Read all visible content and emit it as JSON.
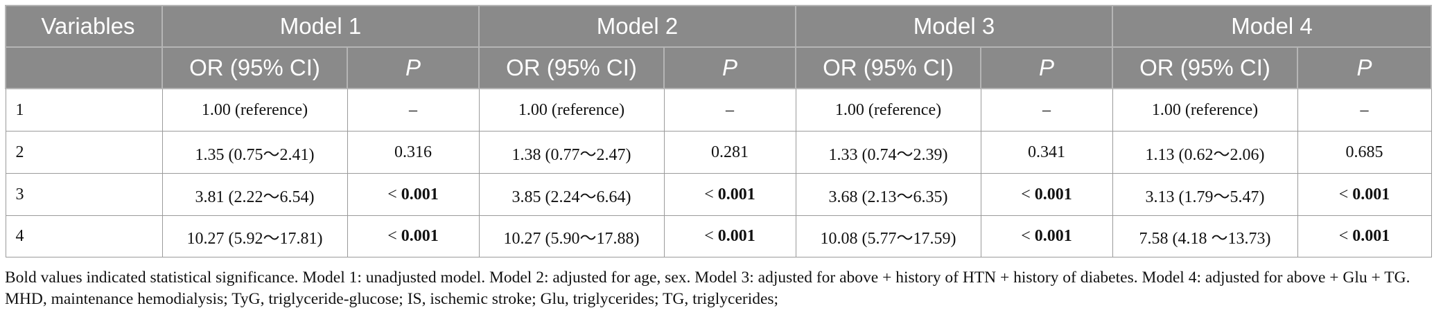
{
  "table": {
    "header_variables": "Variables",
    "models": [
      "Model 1",
      "Model 2",
      "Model 3",
      "Model 4"
    ],
    "sub_or": "OR (95% CI)",
    "sub_p": "P",
    "rows": [
      {
        "label": "1",
        "cells": [
          {
            "or": "1.00 (reference)",
            "p_prefix": "",
            "p": "–",
            "p_bold": false
          },
          {
            "or": "1.00 (reference)",
            "p_prefix": "",
            "p": "–",
            "p_bold": false
          },
          {
            "or": "1.00 (reference)",
            "p_prefix": "",
            "p": "–",
            "p_bold": false
          },
          {
            "or": "1.00 (reference)",
            "p_prefix": "",
            "p": "–",
            "p_bold": false
          }
        ]
      },
      {
        "label": "2",
        "cells": [
          {
            "or": "1.35 (0.75～2.41)",
            "p_prefix": "",
            "p": "0.316",
            "p_bold": false
          },
          {
            "or": "1.38 (0.77～2.47)",
            "p_prefix": "",
            "p": "0.281",
            "p_bold": false
          },
          {
            "or": "1.33 (0.74～2.39)",
            "p_prefix": "",
            "p": "0.341",
            "p_bold": false
          },
          {
            "or": "1.13 (0.62～2.06)",
            "p_prefix": "",
            "p": "0.685",
            "p_bold": false
          }
        ]
      },
      {
        "label": "3",
        "cells": [
          {
            "or": "3.81 (2.22～6.54)",
            "p_prefix": "< ",
            "p": "0.001",
            "p_bold": true
          },
          {
            "or": "3.85 (2.24～6.64)",
            "p_prefix": "< ",
            "p": "0.001",
            "p_bold": true
          },
          {
            "or": "3.68 (2.13～6.35)",
            "p_prefix": "< ",
            "p": "0.001",
            "p_bold": true
          },
          {
            "or": "3.13 (1.79～5.47)",
            "p_prefix": "< ",
            "p": "0.001",
            "p_bold": true
          }
        ]
      },
      {
        "label": "4",
        "cells": [
          {
            "or": "10.27 (5.92～17.81)",
            "p_prefix": "< ",
            "p": "0.001",
            "p_bold": true
          },
          {
            "or": "10.27 (5.90～17.88)",
            "p_prefix": "< ",
            "p": "0.001",
            "p_bold": true
          },
          {
            "or": "10.08 (5.77～17.59)",
            "p_prefix": "< ",
            "p": "0.001",
            "p_bold": true
          },
          {
            "or": "7.58 (4.18 ～13.73)",
            "p_prefix": "< ",
            "p": "0.001",
            "p_bold": true
          }
        ]
      }
    ]
  },
  "footnote": "Bold values indicated statistical significance. Model 1: unadjusted model. Model 2: adjusted for age, sex. Model 3: adjusted for above + history of HTN + history of diabetes. Model 4: adjusted for above + Glu + TG. MHD, maintenance hemodialysis; TyG, triglyceride-glucose; IS, ischemic stroke; Glu, triglycerides; TG, triglycerides;",
  "colors": {
    "header_bg": "#8a8a8a",
    "header_text": "#ffffff",
    "border": "#9a9a9a",
    "body_text": "#111111"
  }
}
